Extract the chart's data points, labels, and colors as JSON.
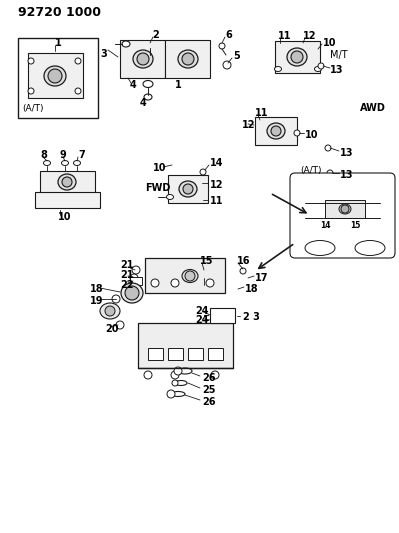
{
  "title": "92720 1000",
  "bg_color": "#ffffff",
  "line_color": "#1a1a1a",
  "text_color": "#000000",
  "fig_width": 3.99,
  "fig_height": 5.33,
  "dpi": 100,
  "labels": {
    "AT_box": "(A/T)",
    "MT": "M/T",
    "AWD": "AWD",
    "FWD": "FWD",
    "AT_right": "(A/T)"
  }
}
